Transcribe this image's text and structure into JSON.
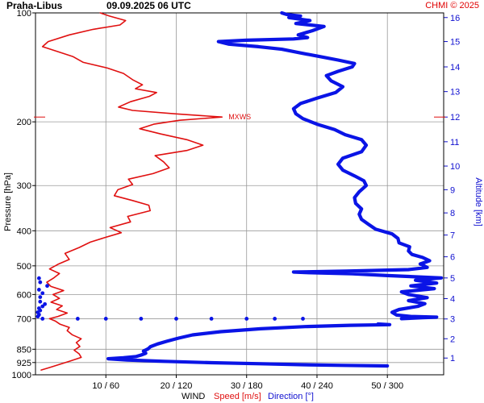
{
  "header": {
    "station": "Praha-Libus",
    "obs_time": "09.09.2025 06 UTC",
    "credit": "CHMI © 2025"
  },
  "chart_data": {
    "type": "line",
    "title": "",
    "ylabel": "Pressure [hPa]",
    "y2label": "Altitude [km]",
    "xlabel": {
      "prefix": "WIND",
      "speed": "Speed [m/s]",
      "direction": "Direction [°]"
    },
    "y_scale": "log",
    "ylim": [
      1000,
      100
    ],
    "pressure_ticks": [
      100,
      200,
      300,
      400,
      500,
      600,
      700,
      850,
      925,
      1000
    ],
    "altitude_ticks": [
      {
        "km": 1,
        "p": 899
      },
      {
        "km": 2,
        "p": 795
      },
      {
        "km": 3,
        "p": 701
      },
      {
        "km": 4,
        "p": 616
      },
      {
        "km": 5,
        "p": 540
      },
      {
        "km": 6,
        "p": 472
      },
      {
        "km": 7,
        "p": 411
      },
      {
        "km": 8,
        "p": 357
      },
      {
        "km": 9,
        "p": 308
      },
      {
        "km": 10,
        "p": 265
      },
      {
        "km": 11,
        "p": 227
      },
      {
        "km": 12,
        "p": 194
      },
      {
        "km": 13,
        "p": 165
      },
      {
        "km": 14,
        "p": 141
      },
      {
        "km": 15,
        "p": 120
      },
      {
        "km": 16,
        "p": 103
      }
    ],
    "x_ticks": [
      {
        "speed": 10,
        "dir": 60,
        "label": "10 / 60"
      },
      {
        "speed": 20,
        "dir": 120,
        "label": "20 / 120"
      },
      {
        "speed": 30,
        "dir": 180,
        "label": "30 / 180"
      },
      {
        "speed": 40,
        "dir": 240,
        "label": "40 / 240"
      },
      {
        "speed": 50,
        "dir": 300,
        "label": "50 / 300"
      }
    ],
    "speed_range": [
      0,
      58
    ],
    "dir_range": [
      0,
      348
    ],
    "max_wind": {
      "label": "MXWS",
      "speed": 26.5,
      "p": 194
    },
    "colors": {
      "speed": "#e01010",
      "direction": "#0a14e6",
      "grid": "#999999",
      "axis": "#000000"
    },
    "series": [
      {
        "name": "Speed [m/s]",
        "key": "speed",
        "points": [
          {
            "p": 970,
            "v": 0.8
          },
          {
            "p": 955,
            "v": 2
          },
          {
            "p": 935,
            "v": 3.5
          },
          {
            "p": 915,
            "v": 5
          },
          {
            "p": 895,
            "v": 6.5
          },
          {
            "p": 875,
            "v": 6.2
          },
          {
            "p": 855,
            "v": 5.5
          },
          {
            "p": 835,
            "v": 6.3
          },
          {
            "p": 815,
            "v": 5.8
          },
          {
            "p": 795,
            "v": 6.5
          },
          {
            "p": 775,
            "v": 5.2
          },
          {
            "p": 755,
            "v": 4.5
          },
          {
            "p": 740,
            "v": 4.8
          },
          {
            "p": 725,
            "v": 3.5
          },
          {
            "p": 710,
            "v": 2.8
          },
          {
            "p": 700,
            "v": 2
          },
          {
            "p": 690,
            "v": 3.2
          },
          {
            "p": 675,
            "v": 4.5
          },
          {
            "p": 660,
            "v": 3
          },
          {
            "p": 645,
            "v": 3.8
          },
          {
            "p": 630,
            "v": 2.2
          },
          {
            "p": 615,
            "v": 3.4
          },
          {
            "p": 600,
            "v": 2.5
          },
          {
            "p": 585,
            "v": 4
          },
          {
            "p": 570,
            "v": 2.2
          },
          {
            "p": 555,
            "v": 1.6
          },
          {
            "p": 540,
            "v": 2.6
          },
          {
            "p": 525,
            "v": 3.4
          },
          {
            "p": 510,
            "v": 2
          },
          {
            "p": 495,
            "v": 3.2
          },
          {
            "p": 480,
            "v": 4.8
          },
          {
            "p": 462,
            "v": 4.2
          },
          {
            "p": 445,
            "v": 6.2
          },
          {
            "p": 430,
            "v": 7.8
          },
          {
            "p": 418,
            "v": 9.8
          },
          {
            "p": 405,
            "v": 12.2
          },
          {
            "p": 392,
            "v": 10.6
          },
          {
            "p": 378,
            "v": 13.5
          },
          {
            "p": 365,
            "v": 13.1
          },
          {
            "p": 352,
            "v": 16.3
          },
          {
            "p": 340,
            "v": 16.1
          },
          {
            "p": 330,
            "v": 13.8
          },
          {
            "p": 320,
            "v": 11.2
          },
          {
            "p": 308,
            "v": 11.7
          },
          {
            "p": 298,
            "v": 13.8
          },
          {
            "p": 288,
            "v": 13.2
          },
          {
            "p": 278,
            "v": 16.7
          },
          {
            "p": 268,
            "v": 19
          },
          {
            "p": 258,
            "v": 18.2
          },
          {
            "p": 248,
            "v": 17
          },
          {
            "p": 240,
            "v": 21.5
          },
          {
            "p": 232,
            "v": 23.8
          },
          {
            "p": 224,
            "v": 21.5
          },
          {
            "p": 216,
            "v": 17.8
          },
          {
            "p": 209,
            "v": 14.8
          },
          {
            "p": 203,
            "v": 16.8
          },
          {
            "p": 198,
            "v": 20.5
          },
          {
            "p": 194,
            "v": 26.5
          },
          {
            "p": 190,
            "v": 19.8
          },
          {
            "p": 186,
            "v": 13.8
          },
          {
            "p": 182,
            "v": 11.8
          },
          {
            "p": 176,
            "v": 13.5
          },
          {
            "p": 170,
            "v": 16.2
          },
          {
            "p": 166,
            "v": 17.2
          },
          {
            "p": 162,
            "v": 14.2
          },
          {
            "p": 158,
            "v": 15.2
          },
          {
            "p": 153,
            "v": 13.8
          },
          {
            "p": 147,
            "v": 12.5
          },
          {
            "p": 142,
            "v": 10.2
          },
          {
            "p": 137,
            "v": 6.8
          },
          {
            "p": 132,
            "v": 5.3
          },
          {
            "p": 128,
            "v": 3.2
          },
          {
            "p": 124,
            "v": 1
          },
          {
            "p": 120,
            "v": 1.8
          },
          {
            "p": 115,
            "v": 4.8
          },
          {
            "p": 111,
            "v": 8.2
          },
          {
            "p": 108,
            "v": 12
          },
          {
            "p": 105,
            "v": 12.8
          },
          {
            "p": 102,
            "v": 10.5
          },
          {
            "p": 100,
            "v": 9.2
          }
        ]
      },
      {
        "name": "Direction [°]",
        "key": "dir",
        "points": [
          {
            "p": 945,
            "d": 300
          },
          {
            "p": 942,
            "d": 262
          },
          {
            "p": 938,
            "d": 228
          },
          {
            "p": 932,
            "d": 192
          },
          {
            "p": 926,
            "d": 150
          },
          {
            "p": 918,
            "d": 110
          },
          {
            "p": 910,
            "d": 78
          },
          {
            "p": 903,
            "d": 62
          },
          {
            "p": 897,
            "d": 75
          },
          {
            "p": 890,
            "d": 86
          },
          {
            "p": 882,
            "d": 90
          },
          {
            "p": 872,
            "d": 94
          },
          {
            "p": 860,
            "d": 92
          },
          {
            "p": 848,
            "d": 96
          },
          {
            "p": 836,
            "d": 98
          },
          {
            "p": 822,
            "d": 104
          },
          {
            "p": 808,
            "d": 112
          },
          {
            "p": 792,
            "d": 122
          },
          {
            "p": 776,
            "d": 134
          },
          {
            "p": 760,
            "d": 158
          },
          {
            "p": 746,
            "d": 192
          },
          {
            "p": 736,
            "d": 230
          },
          {
            "p": 730,
            "d": 268
          },
          {
            "p": 727,
            "d": 302
          },
          {
            "p": 724,
            "d": 292
          }
        ]
      },
      {
        "name": "Direction [°]",
        "key": "dir_upper",
        "points": [
          {
            "p": 700,
            "d": 312
          },
          {
            "p": 695,
            "d": 330
          },
          {
            "p": 693,
            "d": 342
          },
          {
            "p": 690,
            "d": 320
          },
          {
            "p": 684,
            "d": 308
          },
          {
            "p": 672,
            "d": 304
          },
          {
            "p": 660,
            "d": 310
          },
          {
            "p": 647,
            "d": 326
          },
          {
            "p": 636,
            "d": 332
          },
          {
            "p": 624,
            "d": 318
          },
          {
            "p": 612,
            "d": 334
          },
          {
            "p": 600,
            "d": 318
          },
          {
            "p": 590,
            "d": 312
          },
          {
            "p": 578,
            "d": 340
          },
          {
            "p": 568,
            "d": 320
          },
          {
            "p": 558,
            "d": 342
          },
          {
            "p": 548,
            "d": 324
          },
          {
            "p": 540,
            "d": 346
          },
          {
            "p": 532,
            "d": 300
          },
          {
            "p": 526,
            "d": 270
          },
          {
            "p": 522,
            "d": 230
          },
          {
            "p": 520,
            "d": 220
          },
          {
            "p": 517,
            "d": 265
          },
          {
            "p": 512,
            "d": 318
          },
          {
            "p": 505,
            "d": 334
          },
          {
            "p": 494,
            "d": 328
          },
          {
            "p": 484,
            "d": 336
          },
          {
            "p": 474,
            "d": 330
          },
          {
            "p": 465,
            "d": 321
          },
          {
            "p": 455,
            "d": 318
          },
          {
            "p": 443,
            "d": 319
          },
          {
            "p": 432,
            "d": 310
          },
          {
            "p": 420,
            "d": 309
          },
          {
            "p": 408,
            "d": 304
          },
          {
            "p": 396,
            "d": 290
          },
          {
            "p": 384,
            "d": 284
          },
          {
            "p": 372,
            "d": 278
          },
          {
            "p": 360,
            "d": 276
          },
          {
            "p": 348,
            "d": 278
          },
          {
            "p": 336,
            "d": 273
          },
          {
            "p": 324,
            "d": 272
          },
          {
            "p": 312,
            "d": 276
          },
          {
            "p": 300,
            "d": 282
          },
          {
            "p": 291,
            "d": 280
          },
          {
            "p": 282,
            "d": 272
          },
          {
            "p": 272,
            "d": 262
          },
          {
            "p": 262,
            "d": 258
          },
          {
            "p": 252,
            "d": 262
          },
          {
            "p": 242,
            "d": 278
          },
          {
            "p": 232,
            "d": 282
          },
          {
            "p": 224,
            "d": 278
          },
          {
            "p": 217,
            "d": 264
          },
          {
            "p": 210,
            "d": 255
          },
          {
            "p": 203,
            "d": 240
          },
          {
            "p": 196,
            "d": 228
          },
          {
            "p": 190,
            "d": 222
          },
          {
            "p": 184,
            "d": 220
          },
          {
            "p": 178,
            "d": 226
          },
          {
            "p": 172,
            "d": 240
          },
          {
            "p": 166,
            "d": 256
          },
          {
            "p": 160,
            "d": 262
          },
          {
            "p": 154,
            "d": 252
          },
          {
            "p": 149,
            "d": 248
          },
          {
            "p": 145,
            "d": 258
          },
          {
            "p": 141,
            "d": 270
          },
          {
            "p": 138,
            "d": 272
          },
          {
            "p": 135,
            "d": 258
          },
          {
            "p": 132,
            "d": 242
          },
          {
            "p": 129,
            "d": 226
          },
          {
            "p": 126,
            "d": 210
          },
          {
            "p": 124,
            "d": 190
          },
          {
            "p": 122,
            "d": 165
          },
          {
            "p": 120,
            "d": 156
          },
          {
            "p": 119,
            "d": 180
          },
          {
            "p": 118,
            "d": 220
          },
          {
            "p": 117,
            "d": 232
          },
          {
            "p": 115,
            "d": 224
          },
          {
            "p": 112,
            "d": 236
          },
          {
            "p": 109,
            "d": 246
          },
          {
            "p": 107,
            "d": 222
          },
          {
            "p": 105,
            "d": 234
          },
          {
            "p": 103,
            "d": 216
          },
          {
            "p": 102,
            "d": 226
          },
          {
            "p": 101,
            "d": 214
          },
          {
            "p": 100,
            "d": 210
          }
        ]
      }
    ],
    "direction_dots": {
      "name": "Direction [°]",
      "points": [
        {
          "p": 700,
          "d": 6
        },
        {
          "p": 700,
          "d": 36
        },
        {
          "p": 700,
          "d": 60
        },
        {
          "p": 700,
          "d": 90
        },
        {
          "p": 700,
          "d": 120
        },
        {
          "p": 700,
          "d": 150
        },
        {
          "p": 700,
          "d": 180
        },
        {
          "p": 700,
          "d": 204
        },
        {
          "p": 700,
          "d": 228
        },
        {
          "p": 690,
          "d": 2
        },
        {
          "p": 682,
          "d": 3
        },
        {
          "p": 672,
          "d": 2
        },
        {
          "p": 664,
          "d": 4
        },
        {
          "p": 655,
          "d": 3
        },
        {
          "p": 647,
          "d": 6
        },
        {
          "p": 638,
          "d": 8
        },
        {
          "p": 628,
          "d": 4
        },
        {
          "p": 610,
          "d": 4
        },
        {
          "p": 595,
          "d": 6
        },
        {
          "p": 582,
          "d": 3
        },
        {
          "p": 568,
          "d": 10
        },
        {
          "p": 555,
          "d": 4
        },
        {
          "p": 541,
          "d": 3
        }
      ]
    }
  }
}
